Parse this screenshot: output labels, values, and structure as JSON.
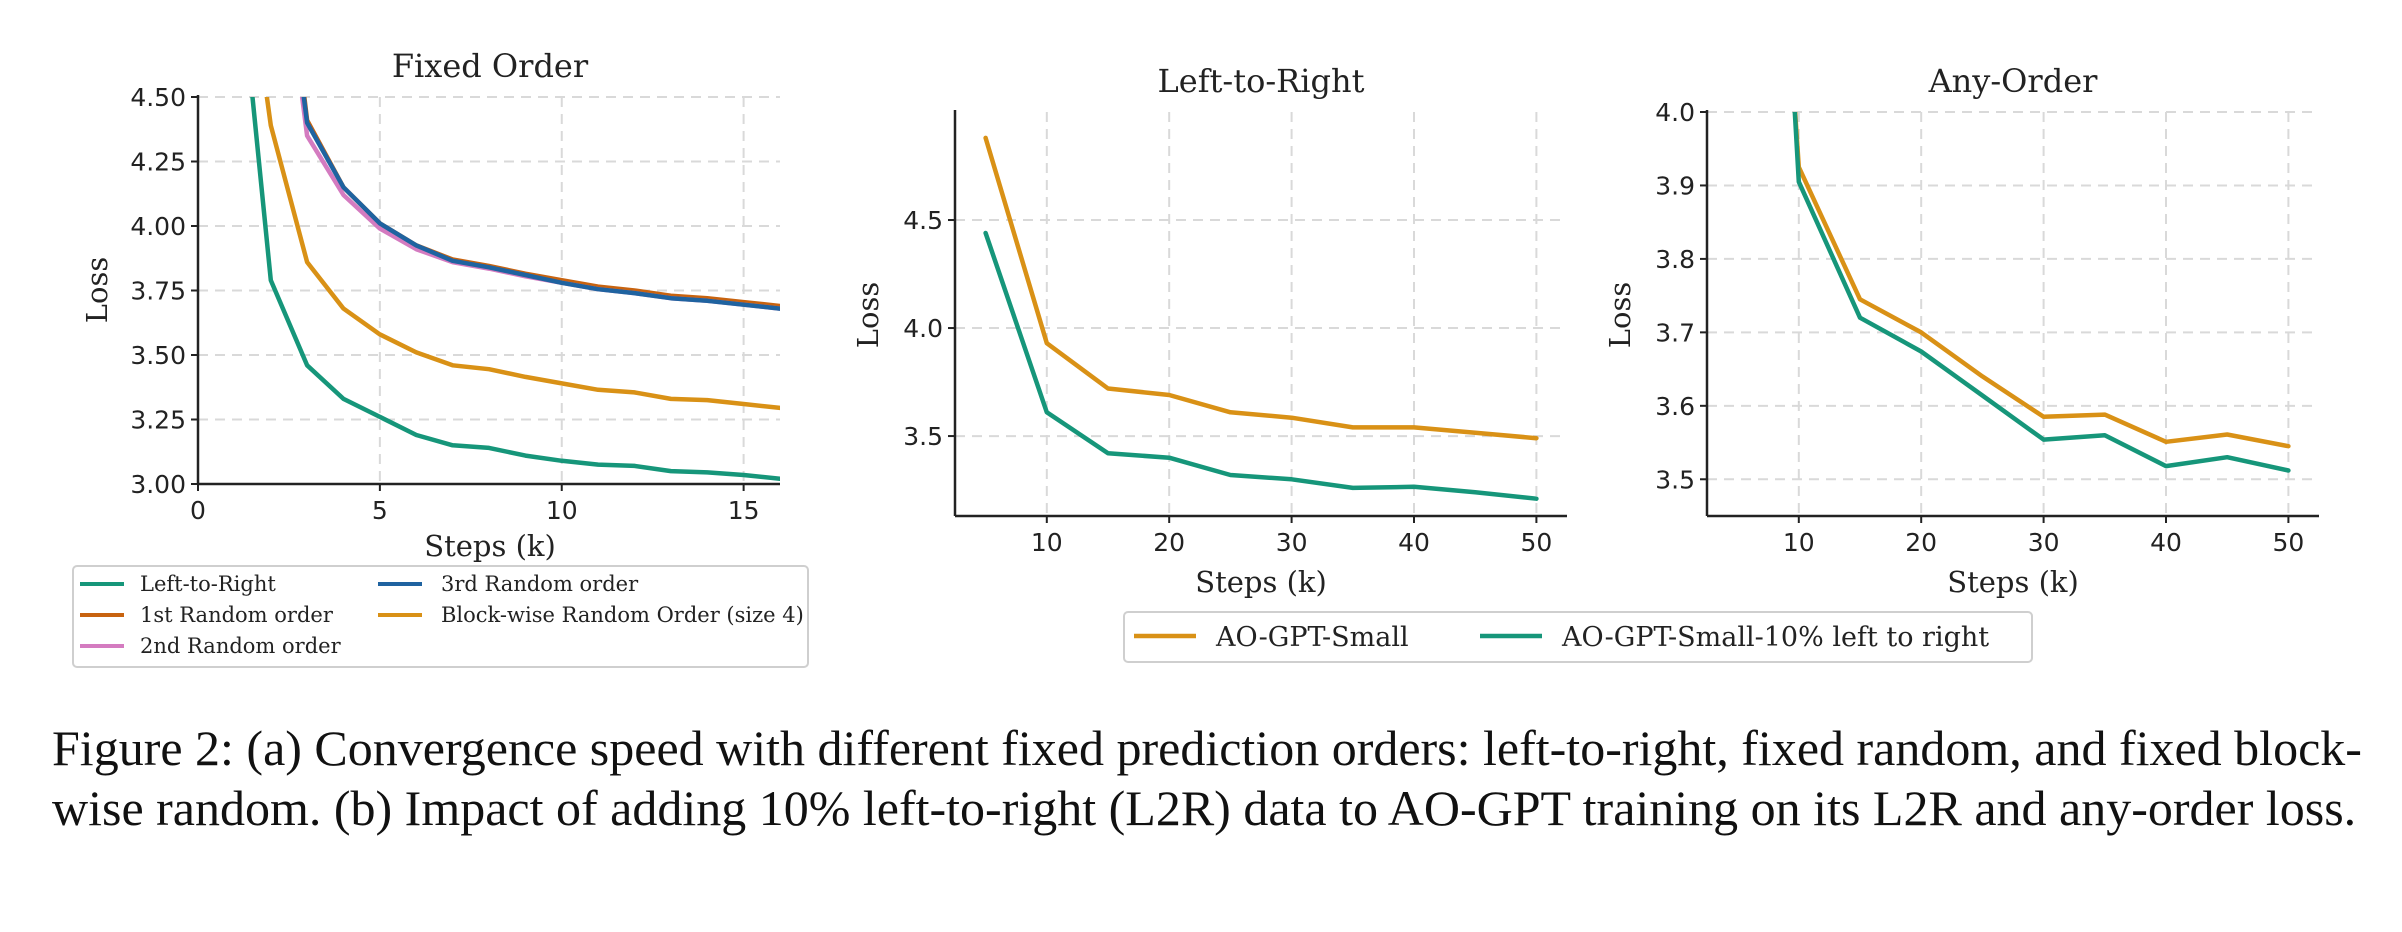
{
  "chart_data": [
    {
      "type": "line",
      "title": "Fixed Order",
      "xlabel": "Steps (k)",
      "ylabel": "Loss",
      "xlim": [
        0,
        16
      ],
      "ylim": [
        3.0,
        4.5
      ],
      "xticks": [
        0,
        5,
        10,
        15
      ],
      "yticks": [
        3.0,
        3.25,
        3.5,
        3.75,
        4.0,
        4.25,
        4.5
      ],
      "xtick_labels": [
        "0",
        "5",
        "10",
        "15"
      ],
      "ytick_labels": [
        "3.00",
        "3.25",
        "3.50",
        "3.75",
        "4.00",
        "4.25",
        "4.50"
      ],
      "grid": true,
      "legend_position": "below",
      "series": [
        {
          "name": "Left-to-Right",
          "color": "#16967a",
          "x": [
            1,
            2,
            3,
            4,
            5,
            6,
            7,
            8,
            9,
            10,
            11,
            12,
            13,
            14,
            15,
            16
          ],
          "y": [
            5.2,
            3.79,
            3.46,
            3.33,
            3.26,
            3.19,
            3.15,
            3.14,
            3.11,
            3.09,
            3.075,
            3.07,
            3.05,
            3.045,
            3.035,
            3.02
          ]
        },
        {
          "name": "1st Random order",
          "color": "#c8630f",
          "x": [
            2.5,
            3,
            4,
            5,
            6,
            7,
            8,
            9,
            10,
            11,
            12,
            13,
            14,
            15,
            16
          ],
          "y": [
            5.0,
            4.41,
            4.15,
            4.01,
            3.925,
            3.87,
            3.845,
            3.815,
            3.79,
            3.765,
            3.75,
            3.73,
            3.72,
            3.705,
            3.69
          ]
        },
        {
          "name": "2nd Random order",
          "color": "#d47bc0",
          "x": [
            2.5,
            3,
            4,
            5,
            6,
            7,
            8,
            9,
            10,
            11,
            12,
            13,
            14,
            15,
            16
          ],
          "y": [
            4.9,
            4.35,
            4.12,
            3.99,
            3.91,
            3.86,
            3.835,
            3.805,
            3.78,
            3.755,
            3.74,
            3.72,
            3.71,
            3.695,
            3.68
          ]
        },
        {
          "name": "3rd Random order",
          "color": "#1f63a0",
          "x": [
            2.5,
            3,
            4,
            5,
            6,
            7,
            8,
            9,
            10,
            11,
            12,
            13,
            14,
            15,
            16
          ],
          "y": [
            4.95,
            4.4,
            4.15,
            4.01,
            3.925,
            3.865,
            3.84,
            3.81,
            3.78,
            3.755,
            3.74,
            3.72,
            3.71,
            3.695,
            3.68
          ]
        },
        {
          "name": "Block-wise Random Order (size 4)",
          "color": "#d99116",
          "x": [
            1.6,
            2,
            3,
            4,
            5,
            6,
            7,
            8,
            9,
            10,
            11,
            12,
            13,
            14,
            15,
            16
          ],
          "y": [
            4.8,
            4.39,
            3.86,
            3.68,
            3.58,
            3.51,
            3.46,
            3.445,
            3.415,
            3.39,
            3.365,
            3.355,
            3.33,
            3.325,
            3.31,
            3.295
          ]
        }
      ]
    },
    {
      "type": "line",
      "title": "Left-to-Right",
      "xlabel": "Steps (k)",
      "ylabel": "Loss",
      "xlim": [
        2.5,
        52.5
      ],
      "ylim": [
        3.13,
        5.0
      ],
      "xticks": [
        10,
        20,
        30,
        40,
        50
      ],
      "yticks": [
        3.5,
        4.0,
        4.5
      ],
      "xtick_labels": [
        "10",
        "20",
        "30",
        "40",
        "50"
      ],
      "ytick_labels": [
        "3.5",
        "4.0",
        "4.5"
      ],
      "grid": true,
      "series": [
        {
          "name": "AO-GPT-Small",
          "color": "#d99116",
          "x": [
            5,
            10,
            15,
            20,
            25,
            30,
            35,
            40,
            45,
            50
          ],
          "y": [
            4.88,
            3.93,
            3.72,
            3.69,
            3.61,
            3.585,
            3.54,
            3.54,
            3.515,
            3.49
          ]
        },
        {
          "name": "AO-GPT-Small-10% left to right",
          "color": "#16967a",
          "x": [
            5,
            10,
            15,
            20,
            25,
            30,
            35,
            40,
            45,
            50
          ],
          "y": [
            4.44,
            3.61,
            3.42,
            3.4,
            3.32,
            3.3,
            3.26,
            3.265,
            3.24,
            3.21
          ]
        }
      ]
    },
    {
      "type": "line",
      "title": "Any-Order",
      "xlabel": "Steps (k)",
      "ylabel": "Loss",
      "xlim": [
        2.5,
        52.5
      ],
      "ylim": [
        3.45,
        4.0
      ],
      "xticks": [
        10,
        20,
        30,
        40,
        50
      ],
      "yticks": [
        3.5,
        3.6,
        3.7,
        3.8,
        3.9,
        4.0
      ],
      "xtick_labels": [
        "10",
        "20",
        "30",
        "40",
        "50"
      ],
      "ytick_labels": [
        "3.5",
        "3.6",
        "3.7",
        "3.8",
        "3.9",
        "4.0"
      ],
      "grid": true,
      "legend_position": "below (shared)",
      "series": [
        {
          "name": "AO-GPT-Small",
          "color": "#d99116",
          "x": [
            9.5,
            10,
            15,
            20,
            25,
            30,
            35,
            40,
            45,
            50
          ],
          "y": [
            4.05,
            3.925,
            3.745,
            3.7,
            3.64,
            3.585,
            3.588,
            3.551,
            3.561,
            3.545
          ]
        },
        {
          "name": "AO-GPT-Small-10% left to right",
          "color": "#16967a",
          "x": [
            9.5,
            10,
            15,
            20,
            25,
            30,
            35,
            40,
            45,
            50
          ],
          "y": [
            4.05,
            3.905,
            3.72,
            3.674,
            3.614,
            3.554,
            3.56,
            3.518,
            3.53,
            3.512
          ]
        }
      ]
    }
  ],
  "legend_b": [
    "AO-GPT-Small",
    "AO-GPT-Small-10% left to right"
  ],
  "caption": "Figure 2: (a) Convergence speed with different fixed prediction orders: left-to-right, fixed random, and fixed block-wise random. (b) Impact of adding 10% left-to-right (L2R) data to AO-GPT training on its L2R and any-order loss."
}
